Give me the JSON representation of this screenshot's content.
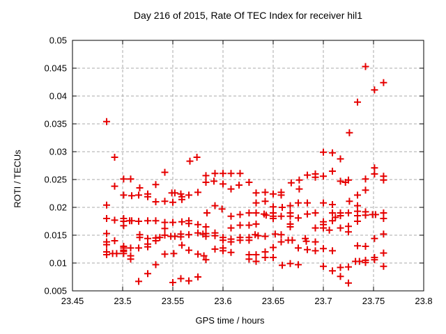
{
  "chart_data": {
    "type": "scatter",
    "title": "Day 216 of 2015, Rate Of TEC Index for receiver hil1",
    "xlabel": "GPS time / hours",
    "ylabel": "ROTI / TECUs",
    "xlim": [
      23.45,
      23.8
    ],
    "ylim": [
      0.005,
      0.05
    ],
    "xticks": [
      "23.45",
      "23.5",
      "23.55",
      "23.6",
      "23.65",
      "23.7",
      "23.75",
      "23.8"
    ],
    "yticks": [
      "0.005",
      "0.01",
      "0.015",
      "0.02",
      "0.025",
      "0.03",
      "0.035",
      "0.04",
      "0.045",
      "0.05"
    ],
    "grid": "dashed",
    "legend": "none",
    "marker": "plus",
    "colors": {
      "marker": "#e60000",
      "grid": "#a8a8a8",
      "axis": "#000000",
      "background": "#ffffff"
    },
    "series_name": "ROTI",
    "points": [
      [
        23.484,
        0.0354
      ],
      [
        23.492,
        0.029
      ],
      [
        23.574,
        0.029
      ],
      [
        23.567,
        0.0283
      ],
      [
        23.7,
        0.0299
      ],
      [
        23.709,
        0.0298
      ],
      [
        23.742,
        0.0453
      ],
      [
        23.76,
        0.0424
      ],
      [
        23.751,
        0.0411
      ],
      [
        23.734,
        0.0389
      ],
      [
        23.726,
        0.0334
      ],
      [
        23.717,
        0.0287
      ],
      [
        23.501,
        0.0251
      ],
      [
        23.508,
        0.0251
      ],
      [
        23.492,
        0.0238
      ],
      [
        23.517,
        0.0235
      ],
      [
        23.533,
        0.0241
      ],
      [
        23.501,
        0.0222
      ],
      [
        23.509,
        0.0221
      ],
      [
        23.516,
        0.0222
      ],
      [
        23.525,
        0.0224
      ],
      [
        23.525,
        0.0219
      ],
      [
        23.533,
        0.021
      ],
      [
        23.484,
        0.0204
      ],
      [
        23.484,
        0.018
      ],
      [
        23.492,
        0.0177
      ],
      [
        23.501,
        0.018
      ],
      [
        23.501,
        0.0175
      ],
      [
        23.507,
        0.0176
      ],
      [
        23.509,
        0.0176
      ],
      [
        23.516,
        0.0175
      ],
      [
        23.525,
        0.0176
      ],
      [
        23.533,
        0.0176
      ],
      [
        23.501,
        0.0167
      ],
      [
        23.484,
        0.0153
      ],
      [
        23.517,
        0.0151
      ],
      [
        23.517,
        0.0146
      ],
      [
        23.525,
        0.0144
      ],
      [
        23.533,
        0.0145
      ],
      [
        23.533,
        0.014
      ],
      [
        23.484,
        0.0138
      ],
      [
        23.484,
        0.0133
      ],
      [
        23.492,
        0.014
      ],
      [
        23.501,
        0.013
      ],
      [
        23.501,
        0.0127
      ],
      [
        23.501,
        0.0123
      ],
      [
        23.508,
        0.0127
      ],
      [
        23.516,
        0.0127
      ],
      [
        23.525,
        0.0134
      ],
      [
        23.525,
        0.0129
      ],
      [
        23.484,
        0.012
      ],
      [
        23.484,
        0.0115
      ],
      [
        23.49,
        0.0117
      ],
      [
        23.494,
        0.0117
      ],
      [
        23.501,
        0.0121
      ],
      [
        23.501,
        0.0117
      ],
      [
        23.508,
        0.0113
      ],
      [
        23.508,
        0.0107
      ],
      [
        23.533,
        0.0097
      ],
      [
        23.525,
        0.0081
      ],
      [
        23.516,
        0.0067
      ],
      [
        23.542,
        0.0263
      ],
      [
        23.583,
        0.0257
      ],
      [
        23.592,
        0.0261
      ],
      [
        23.6,
        0.0261
      ],
      [
        23.608,
        0.0261
      ],
      [
        23.617,
        0.0261
      ],
      [
        23.583,
        0.0245
      ],
      [
        23.591,
        0.0247
      ],
      [
        23.6,
        0.0242
      ],
      [
        23.616,
        0.024
      ],
      [
        23.626,
        0.0245
      ],
      [
        23.608,
        0.0233
      ],
      [
        23.549,
        0.0226
      ],
      [
        23.552,
        0.0226
      ],
      [
        23.558,
        0.0224
      ],
      [
        23.559,
        0.0219
      ],
      [
        23.559,
        0.0214
      ],
      [
        23.566,
        0.0222
      ],
      [
        23.575,
        0.0227
      ],
      [
        23.542,
        0.0211
      ],
      [
        23.55,
        0.0209
      ],
      [
        23.592,
        0.0203
      ],
      [
        23.599,
        0.0197
      ],
      [
        23.584,
        0.019
      ],
      [
        23.608,
        0.0184
      ],
      [
        23.617,
        0.0187
      ],
      [
        23.626,
        0.019
      ],
      [
        23.542,
        0.0173
      ],
      [
        23.55,
        0.0173
      ],
      [
        23.559,
        0.0174
      ],
      [
        23.566,
        0.0176
      ],
      [
        23.566,
        0.0171
      ],
      [
        23.575,
        0.0169
      ],
      [
        23.583,
        0.0165
      ],
      [
        23.608,
        0.0163
      ],
      [
        23.617,
        0.0168
      ],
      [
        23.626,
        0.0168
      ],
      [
        23.542,
        0.0162
      ],
      [
        23.537,
        0.0146
      ],
      [
        23.542,
        0.015
      ],
      [
        23.548,
        0.0148
      ],
      [
        23.552,
        0.0148
      ],
      [
        23.558,
        0.0152
      ],
      [
        23.558,
        0.0147
      ],
      [
        23.566,
        0.0151
      ],
      [
        23.575,
        0.0154
      ],
      [
        23.58,
        0.0152
      ],
      [
        23.583,
        0.0153
      ],
      [
        23.583,
        0.0148
      ],
      [
        23.592,
        0.0154
      ],
      [
        23.592,
        0.0149
      ],
      [
        23.6,
        0.0146
      ],
      [
        23.6,
        0.0141
      ],
      [
        23.608,
        0.0143
      ],
      [
        23.608,
        0.0138
      ],
      [
        23.617,
        0.0146
      ],
      [
        23.617,
        0.0141
      ],
      [
        23.626,
        0.0146
      ],
      [
        23.626,
        0.0141
      ],
      [
        23.559,
        0.0132
      ],
      [
        23.566,
        0.0123
      ],
      [
        23.551,
        0.0117
      ],
      [
        23.542,
        0.0116
      ],
      [
        23.575,
        0.0116
      ],
      [
        23.581,
        0.0113
      ],
      [
        23.583,
        0.0106
      ],
      [
        23.592,
        0.0125
      ],
      [
        23.6,
        0.0127
      ],
      [
        23.6,
        0.0122
      ],
      [
        23.608,
        0.0119
      ],
      [
        23.626,
        0.0107
      ],
      [
        23.55,
        0.0065
      ],
      [
        23.558,
        0.0072
      ],
      [
        23.566,
        0.0068
      ],
      [
        23.575,
        0.0075
      ],
      [
        23.684,
        0.0258
      ],
      [
        23.692,
        0.026
      ],
      [
        23.692,
        0.0254
      ],
      [
        23.7,
        0.0256
      ],
      [
        23.709,
        0.0265
      ],
      [
        23.668,
        0.0244
      ],
      [
        23.676,
        0.0249
      ],
      [
        23.676,
        0.0233
      ],
      [
        23.633,
        0.0226
      ],
      [
        23.642,
        0.0227
      ],
      [
        23.65,
        0.0224
      ],
      [
        23.658,
        0.0227
      ],
      [
        23.658,
        0.0222
      ],
      [
        23.633,
        0.0208
      ],
      [
        23.642,
        0.0211
      ],
      [
        23.65,
        0.0201
      ],
      [
        23.659,
        0.02
      ],
      [
        23.667,
        0.0203
      ],
      [
        23.675,
        0.0208
      ],
      [
        23.684,
        0.0208
      ],
      [
        23.7,
        0.0208
      ],
      [
        23.709,
        0.0205
      ],
      [
        23.633,
        0.019
      ],
      [
        23.641,
        0.0188
      ],
      [
        23.643,
        0.0186
      ],
      [
        23.65,
        0.019
      ],
      [
        23.65,
        0.0184
      ],
      [
        23.65,
        0.018
      ],
      [
        23.658,
        0.0184
      ],
      [
        23.667,
        0.019
      ],
      [
        23.667,
        0.0184
      ],
      [
        23.675,
        0.0181
      ],
      [
        23.684,
        0.0188
      ],
      [
        23.692,
        0.019
      ],
      [
        23.709,
        0.019
      ],
      [
        23.712,
        0.0182
      ],
      [
        23.633,
        0.017
      ],
      [
        23.667,
        0.017
      ],
      [
        23.667,
        0.0165
      ],
      [
        23.692,
        0.0163
      ],
      [
        23.7,
        0.0174
      ],
      [
        23.7,
        0.0169
      ],
      [
        23.7,
        0.0163
      ],
      [
        23.709,
        0.0176
      ],
      [
        23.706,
        0.0159
      ],
      [
        23.632,
        0.0151
      ],
      [
        23.635,
        0.0149
      ],
      [
        23.642,
        0.0148
      ],
      [
        23.652,
        0.0152
      ],
      [
        23.658,
        0.0151
      ],
      [
        23.658,
        0.0138
      ],
      [
        23.665,
        0.0141
      ],
      [
        23.669,
        0.0141
      ],
      [
        23.682,
        0.0144
      ],
      [
        23.683,
        0.0139
      ],
      [
        23.692,
        0.0138
      ],
      [
        23.675,
        0.0127
      ],
      [
        23.684,
        0.0124
      ],
      [
        23.692,
        0.0122
      ],
      [
        23.7,
        0.0126
      ],
      [
        23.709,
        0.0122
      ],
      [
        23.65,
        0.0128
      ],
      [
        23.642,
        0.012
      ],
      [
        23.642,
        0.011
      ],
      [
        23.633,
        0.0115
      ],
      [
        23.633,
        0.0103
      ],
      [
        23.626,
        0.0115
      ],
      [
        23.65,
        0.011
      ],
      [
        23.659,
        0.0096
      ],
      [
        23.667,
        0.0099
      ],
      [
        23.675,
        0.0097
      ],
      [
        23.7,
        0.0094
      ],
      [
        23.709,
        0.0086
      ],
      [
        23.751,
        0.0271
      ],
      [
        23.751,
        0.026
      ],
      [
        23.76,
        0.0256
      ],
      [
        23.76,
        0.0249
      ],
      [
        23.717,
        0.0247
      ],
      [
        23.725,
        0.0249
      ],
      [
        23.722,
        0.0245
      ],
      [
        23.742,
        0.0251
      ],
      [
        23.742,
        0.0231
      ],
      [
        23.734,
        0.0222
      ],
      [
        23.726,
        0.0211
      ],
      [
        23.734,
        0.0203
      ],
      [
        23.734,
        0.0193
      ],
      [
        23.717,
        0.019
      ],
      [
        23.717,
        0.0185
      ],
      [
        23.725,
        0.019
      ],
      [
        23.734,
        0.0185
      ],
      [
        23.742,
        0.0192
      ],
      [
        23.742,
        0.0186
      ],
      [
        23.749,
        0.0187
      ],
      [
        23.752,
        0.0187
      ],
      [
        23.76,
        0.019
      ],
      [
        23.76,
        0.018
      ],
      [
        23.734,
        0.0175
      ],
      [
        23.717,
        0.0163
      ],
      [
        23.725,
        0.0166
      ],
      [
        23.725,
        0.0156
      ],
      [
        23.76,
        0.0152
      ],
      [
        23.751,
        0.0144
      ],
      [
        23.734,
        0.0131
      ],
      [
        23.742,
        0.013
      ],
      [
        23.76,
        0.0118
      ],
      [
        23.751,
        0.011
      ],
      [
        23.751,
        0.0106
      ],
      [
        23.732,
        0.0103
      ],
      [
        23.736,
        0.0103
      ],
      [
        23.742,
        0.0105
      ],
      [
        23.742,
        0.0101
      ],
      [
        23.76,
        0.0094
      ],
      [
        23.717,
        0.0092
      ],
      [
        23.725,
        0.0093
      ],
      [
        23.717,
        0.0076
      ],
      [
        23.725,
        0.0064
      ]
    ]
  }
}
